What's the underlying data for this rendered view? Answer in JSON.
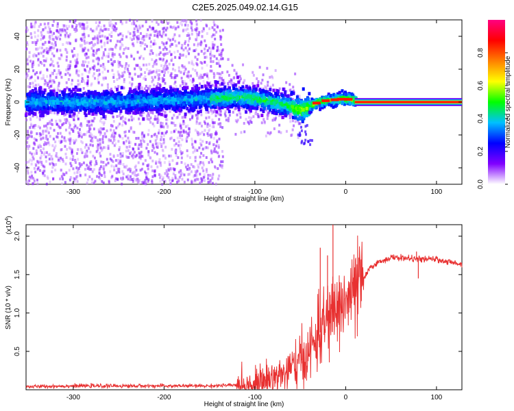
{
  "title": "C2E5.2025.049.02.14.G15",
  "chart_data": [
    {
      "type": "heatmap",
      "xlabel": "Height of straight line (km)",
      "ylabel": "Frequency (Hz)",
      "xlim": [
        -352,
        128
      ],
      "ylim": [
        -50,
        50
      ],
      "xticks": [
        -300,
        -200,
        -100,
        0,
        100
      ],
      "yticks": [
        -40,
        -20,
        0,
        20,
        40
      ],
      "xtick_labels": [
        "-300",
        "-200",
        "-100",
        "0",
        "100"
      ],
      "ytick_labels": [
        "-40",
        "-20",
        "0",
        "20",
        "40"
      ],
      "grid": false,
      "colorbar": {
        "label": "Normalized spectral amplitude",
        "range": [
          0,
          1
        ],
        "ticks": [
          0.0,
          0.2,
          0.4,
          0.6,
          0.8
        ],
        "tick_labels": [
          "0.0",
          "0.2",
          "0.4",
          "0.6",
          "0.8"
        ],
        "colormap": [
          "#ffffff",
          "#8000ff",
          "#0000ff",
          "#00c0ff",
          "#00ff00",
          "#ffff00",
          "#ff8000",
          "#ff0000",
          "#ff0080"
        ]
      },
      "ridge": [
        {
          "x": -350,
          "y": 0
        },
        {
          "x": -300,
          "y": 0
        },
        {
          "x": -250,
          "y": 0
        },
        {
          "x": -200,
          "y": 1
        },
        {
          "x": -150,
          "y": 2
        },
        {
          "x": -120,
          "y": 3
        },
        {
          "x": -100,
          "y": 2
        },
        {
          "x": -80,
          "y": 0
        },
        {
          "x": -65,
          "y": -2
        },
        {
          "x": -50,
          "y": -5
        },
        {
          "x": -40,
          "y": -3
        },
        {
          "x": -30,
          "y": 0
        },
        {
          "x": -20,
          "y": 1
        },
        {
          "x": 0,
          "y": 2
        },
        {
          "x": 20,
          "y": 0
        },
        {
          "x": 128,
          "y": 0
        }
      ]
    },
    {
      "type": "line",
      "xlabel": "Height of straight line (km)",
      "ylabel": "SNR (10 * v/v)",
      "y_multiplier_label": "(x10",
      "y_multiplier_exp": "4",
      "y_multiplier_close": ")",
      "xlim": [
        -352,
        128
      ],
      "ylim": [
        0,
        2.15
      ],
      "xticks": [
        -300,
        -200,
        -100,
        0,
        100
      ],
      "yticks": [
        0.5,
        1.0,
        1.5,
        2.0
      ],
      "xtick_labels": [
        "-300",
        "-200",
        "-100",
        "0",
        "100"
      ],
      "ytick_labels": [
        "0.5",
        "1.0",
        "1.5",
        "2.0"
      ],
      "grid": false,
      "series": [
        {
          "color": "#e83030",
          "x": [
            -352,
            -300,
            -250,
            -200,
            -150,
            -120,
            -110,
            -100,
            -90,
            -80,
            -70,
            -60,
            -50,
            -40,
            -30,
            -25,
            -20,
            -15,
            -10,
            -5,
            0,
            5,
            10,
            15,
            20,
            25,
            30,
            40,
            50,
            60,
            70,
            80,
            90,
            100,
            110,
            120,
            128
          ],
          "y": [
            0.04,
            0.05,
            0.05,
            0.05,
            0.05,
            0.06,
            0.07,
            0.09,
            0.12,
            0.16,
            0.2,
            0.26,
            0.35,
            0.5,
            0.7,
            0.82,
            0.9,
            1.0,
            1.05,
            1.1,
            1.15,
            1.2,
            1.28,
            1.35,
            1.45,
            1.55,
            1.62,
            1.68,
            1.72,
            1.72,
            1.71,
            1.7,
            1.7,
            1.7,
            1.67,
            1.65,
            1.64
          ],
          "spikes": [
            {
              "x": -28,
              "y": 1.85
            },
            {
              "x": -20,
              "y": 1.75
            },
            {
              "x": -14,
              "y": 2.15
            },
            {
              "x": 78,
              "y": 1.8
            },
            {
              "x": 80,
              "y": 1.45
            }
          ]
        }
      ]
    }
  ]
}
